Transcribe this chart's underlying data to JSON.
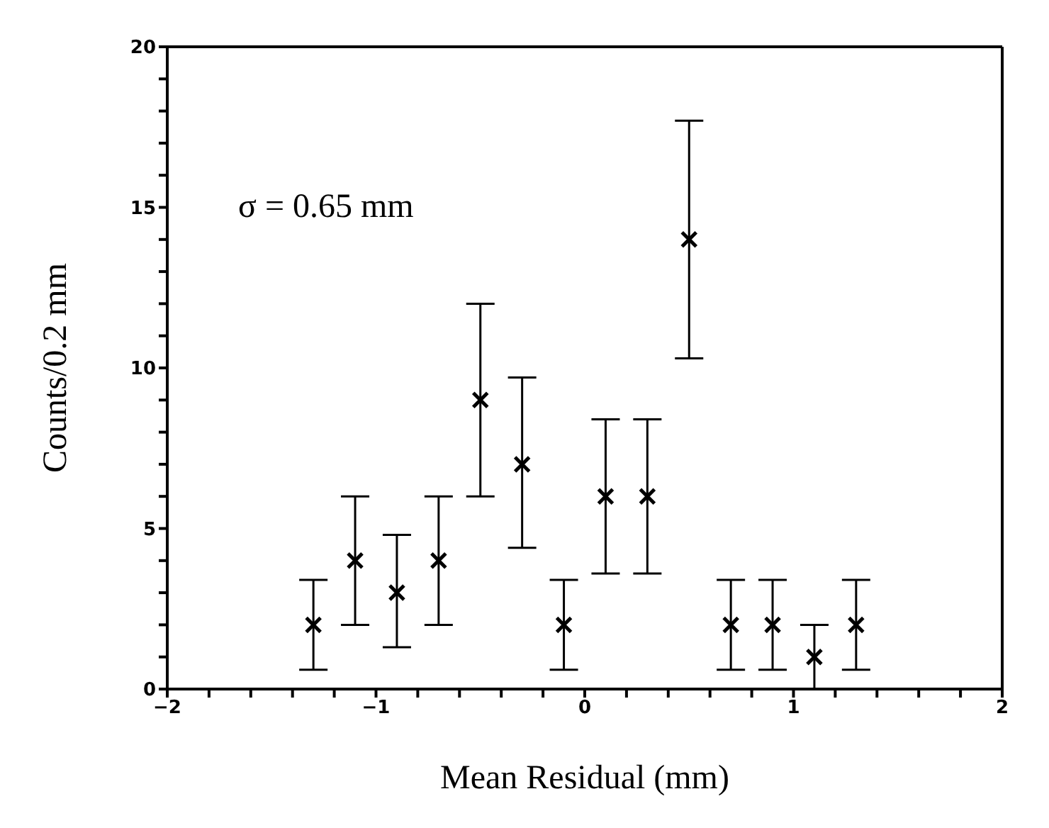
{
  "chart_data": {
    "type": "scatter",
    "xlabel": "Mean Residual (mm)",
    "ylabel": "Counts/0.2 mm",
    "annotations": [
      "σ = 0.65 mm"
    ],
    "x": [
      -1.3,
      -1.1,
      -0.9,
      -0.7,
      -0.5,
      -0.3,
      -0.1,
      0.1,
      0.3,
      0.5,
      0.7,
      0.9,
      1.1,
      1.3
    ],
    "series": [
      {
        "color": "#000000",
        "values": [
          2,
          4,
          3,
          4,
          9,
          7,
          2,
          6,
          6,
          14,
          2,
          2,
          1,
          2
        ],
        "errors": [
          [
            0.6,
            3.4
          ],
          [
            2,
            6
          ],
          [
            1.3,
            4.8
          ],
          [
            2,
            6
          ],
          [
            6,
            12
          ],
          [
            4.4,
            9.7
          ],
          [
            0.6,
            3.4
          ],
          [
            3.6,
            8.4
          ],
          [
            3.6,
            8.4
          ],
          [
            10.3,
            17.7
          ],
          [
            0.6,
            3.4
          ],
          [
            0.6,
            3.4
          ],
          [
            0,
            2
          ],
          [
            0.6,
            3.4
          ]
        ]
      }
    ],
    "marker": "cross",
    "xlim": [
      -2,
      2
    ],
    "xticks": [
      {
        "value": -2,
        "label": "−2"
      },
      {
        "value": -1.8,
        "label": null
      },
      {
        "value": -1.6,
        "label": null
      },
      {
        "value": -1.4,
        "label": null
      },
      {
        "value": -1.2,
        "label": null
      },
      {
        "value": -1,
        "label": "−1"
      },
      {
        "value": -0.8,
        "label": null
      },
      {
        "value": -0.6,
        "label": null
      },
      {
        "value": -0.4,
        "label": null
      },
      {
        "value": -0.2,
        "label": null
      },
      0,
      {
        "value": 0.2,
        "label": null
      },
      {
        "value": 0.4,
        "label": null
      },
      {
        "value": 0.6,
        "label": null
      },
      {
        "value": 0.8,
        "label": null
      },
      1,
      {
        "value": 1.2,
        "label": null
      },
      {
        "value": 1.4,
        "label": null
      },
      {
        "value": 1.6,
        "label": null
      },
      {
        "value": 1.8,
        "label": null
      },
      2
    ],
    "ylim": [
      0,
      20
    ],
    "yticks": [
      0,
      {
        "value": 1,
        "label": null
      },
      {
        "value": 2,
        "label": null
      },
      {
        "value": 3,
        "label": null
      },
      {
        "value": 4,
        "label": null
      },
      5,
      {
        "value": 6,
        "label": null
      },
      {
        "value": 7,
        "label": null
      },
      {
        "value": 8,
        "label": null
      },
      {
        "value": 9,
        "label": null
      },
      10,
      {
        "value": 11,
        "label": null
      },
      {
        "value": 12,
        "label": null
      },
      {
        "value": 13,
        "label": null
      },
      {
        "value": 14,
        "label": null
      },
      15,
      {
        "value": 16,
        "label": null
      },
      {
        "value": 17,
        "label": null
      },
      {
        "value": 18,
        "label": null
      },
      {
        "value": 19,
        "label": null
      },
      20
    ]
  }
}
